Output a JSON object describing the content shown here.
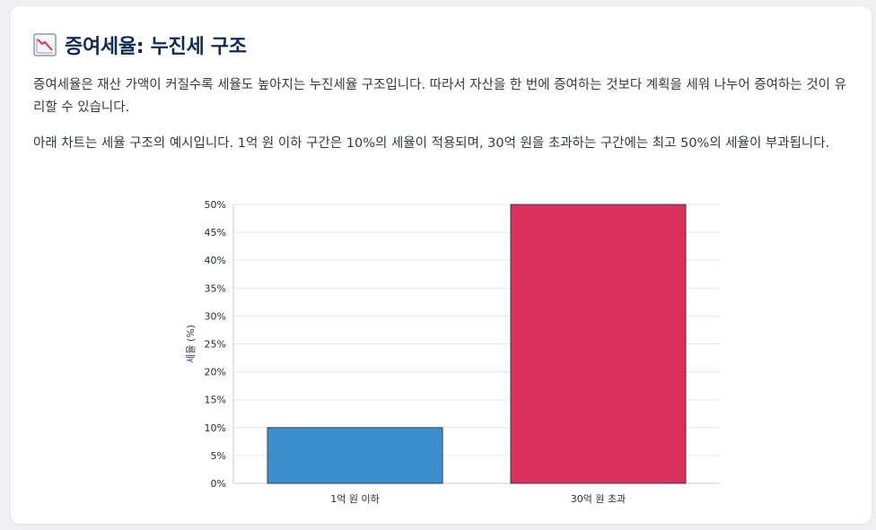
{
  "header": {
    "icon": "chart-decreasing-icon",
    "title": "증여세율: 누진세 구조"
  },
  "paragraphs": [
    "증여세율은 재산 가액이 커질수록 세율도 높아지는 누진세율 구조입니다. 따라서 자산을 한 번에 증여하는 것보다 계획을 세워 나누어 증여하는 것이 유리할 수 있습니다.",
    "아래 차트는 세율 구조의 예시입니다. 1억 원 이하 구간은 10%의 세율이 적용되며, 30억 원을 초과하는 구간에는 최고 50%의 세율이 부과됩니다."
  ],
  "chart_data": {
    "type": "bar",
    "categories": [
      "1억 원 이하",
      "30억 원 초과"
    ],
    "values": [
      10,
      50
    ],
    "colors": [
      "#3d8fcb",
      "#d9305c"
    ],
    "ylabel": "세율 (%)",
    "ylim": [
      0,
      50
    ],
    "yticks": [
      0,
      5,
      10,
      15,
      20,
      25,
      30,
      35,
      40,
      45,
      50
    ],
    "ytick_suffix": "%",
    "grid": true
  }
}
